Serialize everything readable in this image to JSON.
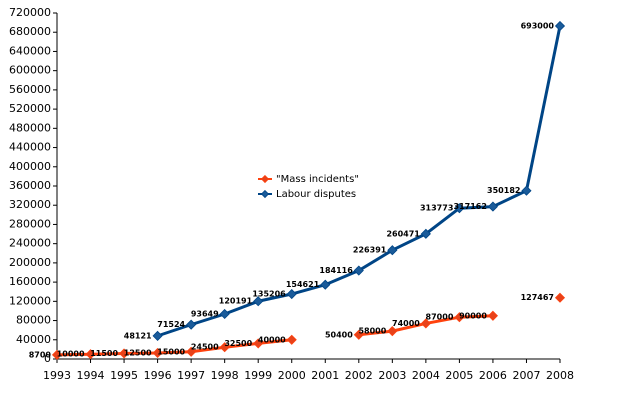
{
  "chart_data": {
    "type": "line",
    "x": [
      1993,
      1994,
      1995,
      1996,
      1997,
      1998,
      1999,
      2000,
      2001,
      2002,
      2003,
      2004,
      2005,
      2006,
      2007,
      2008
    ],
    "series": [
      {
        "name": "\"Mass incidents\"",
        "color": "#ff420e",
        "marker_color": "#e8421a",
        "values": [
          8700,
          10000,
          11500,
          12500,
          15000,
          24500,
          32500,
          40000,
          null,
          50400,
          58000,
          74000,
          87000,
          90000,
          null,
          127467
        ]
      },
      {
        "name": "Labour disputes",
        "color": "#004586",
        "marker_color": "#1a5b9a",
        "values": [
          null,
          null,
          null,
          48121,
          71524,
          93649,
          120191,
          135206,
          154621,
          184116,
          226391,
          260471,
          313773,
          317162,
          350182,
          693000
        ]
      }
    ],
    "xlim": [
      1993,
      2008
    ],
    "xticks": [
      1993,
      1994,
      1995,
      1996,
      1997,
      1998,
      1999,
      2000,
      2001,
      2002,
      2003,
      2004,
      2005,
      2006,
      2007,
      2008
    ],
    "ylim": [
      0,
      720000
    ],
    "yticks": [
      0,
      40000,
      80000,
      120000,
      160000,
      200000,
      240000,
      280000,
      320000,
      360000,
      400000,
      440000,
      480000,
      520000,
      560000,
      600000,
      640000,
      680000,
      720000
    ],
    "grid": false
  }
}
